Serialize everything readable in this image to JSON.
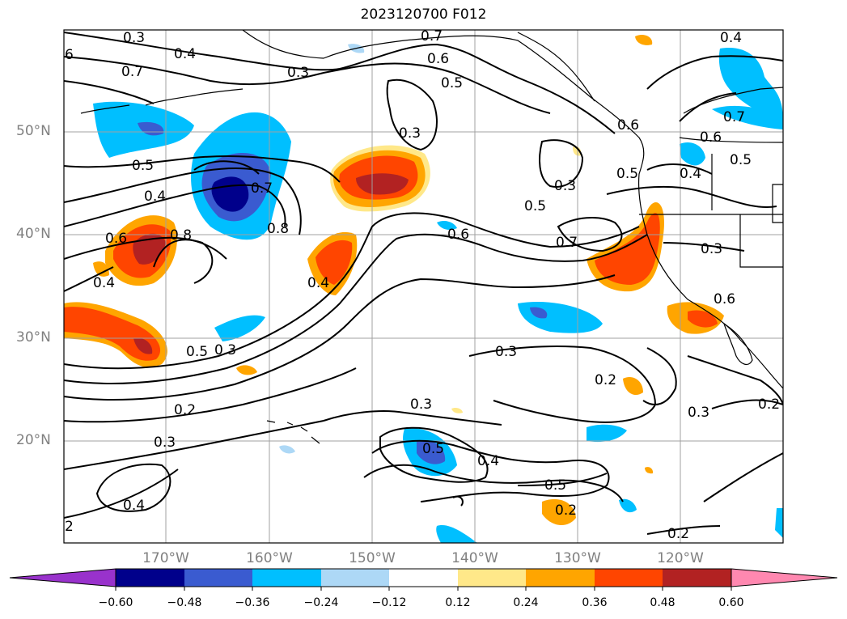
{
  "title": "2023120700 F012",
  "lat_labels": [
    "50°N",
    "40°N",
    "30°N",
    "20°N"
  ],
  "lon_labels": [
    "170°W",
    "160°W",
    "150°W",
    "140°W",
    "130°W",
    "120°W"
  ],
  "contour_labels": [
    "0.3",
    "0.4",
    "0.7",
    "0.3",
    "0.6",
    "0.5",
    "0.5",
    "0.4",
    "0.7",
    "0.8",
    "0.4",
    "0.6",
    "0.8",
    "0.6",
    "0.4",
    "0.5",
    "0.3",
    "0.3",
    "0.5",
    "0.6",
    "0.7",
    "0.5",
    "0.4",
    "0.3",
    "0.5",
    "0.3",
    "0.3",
    "0.2",
    "0.3",
    "0.4",
    "0.5",
    "0.4",
    "0.5",
    "0.2",
    "0.2",
    "0.3",
    "0.2",
    "0.7",
    "0.6",
    "2",
    "0.7",
    "0.4",
    "0.3",
    "0.6",
    "0.2",
    "6"
  ],
  "colorbar": {
    "ticks": [
      "−0.60",
      "−0.48",
      "−0.36",
      "−0.24",
      "−0.12",
      "0.12",
      "0.24",
      "0.36",
      "0.48",
      "0.60"
    ],
    "colors": [
      "#9932cc",
      "#00008b",
      "#3a5bd0",
      "#00bfff",
      "#add8f6",
      "#ffffff",
      "#ffe889",
      "#ffa500",
      "#ff4500",
      "#b22222",
      "#ff88b0"
    ]
  }
}
